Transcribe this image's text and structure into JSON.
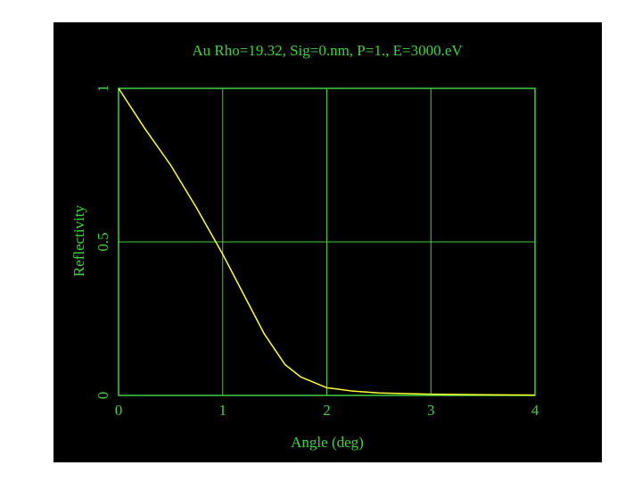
{
  "chart_data": {
    "type": "line",
    "title": "Au Rho=19.32, Sig=0.nm, P=1., E=3000.eV",
    "xlabel": "Angle (deg)",
    "ylabel": "Reflectivity",
    "x": [
      0,
      0.25,
      0.5,
      0.75,
      1.0,
      1.2,
      1.4,
      1.5,
      1.6,
      1.75,
      2.0,
      2.25,
      2.5,
      3.0,
      3.5,
      4.0
    ],
    "series": [
      {
        "name": "Reflectivity",
        "color": "#ffff33",
        "values": [
          1.0,
          0.87,
          0.75,
          0.61,
          0.46,
          0.33,
          0.2,
          0.15,
          0.1,
          0.06,
          0.025,
          0.014,
          0.008,
          0.004,
          0.002,
          0.001
        ]
      }
    ],
    "xlim": [
      0,
      4
    ],
    "xticks": [
      0,
      1,
      2,
      3,
      4
    ],
    "ylim": [
      0,
      1
    ],
    "yticks": [
      0,
      0.5,
      1
    ],
    "grid": true,
    "axis_color": "#3fd13f"
  }
}
